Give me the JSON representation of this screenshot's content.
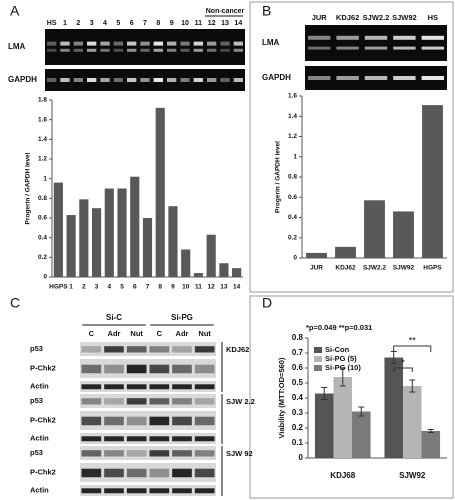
{
  "panels": [
    "A",
    "B",
    "C",
    "D"
  ],
  "gel_a": {
    "lanes": [
      "HS",
      "1",
      "2",
      "3",
      "4",
      "5",
      "6",
      "7",
      "8",
      "9",
      "10",
      "11",
      "12",
      "13",
      "14"
    ],
    "group": "Non-cancer",
    "rows": [
      "LMA",
      "GAPDH"
    ]
  },
  "gel_b": {
    "lanes": [
      "JUR",
      "KDJ62",
      "SJW2.2",
      "SJW92",
      "HS"
    ],
    "rows": [
      "LMA",
      "GAPDH"
    ]
  },
  "blot_c": {
    "header": [
      "Si-C",
      "Si-PG"
    ],
    "lanes": [
      "C",
      "Adr",
      "Nut",
      "C",
      "Adr",
      "Nut"
    ],
    "groups": [
      {
        "cell_line": "KDJ62",
        "rows": [
          "p53",
          "P-Chk2",
          "Actin"
        ]
      },
      {
        "cell_line": "SJW 2.2",
        "rows": [
          "p53",
          "P-Chk2",
          "Actin"
        ]
      },
      {
        "cell_line": "SJW 92",
        "rows": [
          "p53",
          "P-Chk2",
          "Actin"
        ]
      }
    ]
  },
  "chart_data": [
    {
      "type": "bar",
      "y_label": "Progerin / GAPDH level",
      "categories": [
        "HGPS",
        "1",
        "2",
        "3",
        "4",
        "5",
        "6",
        "7",
        "8",
        "9",
        "10",
        "11",
        "12",
        "13",
        "14"
      ],
      "values": [
        0.96,
        0.63,
        0.79,
        0.7,
        0.9,
        0.9,
        1.02,
        0.6,
        1.72,
        0.72,
        0.28,
        0.04,
        0.43,
        0.14,
        0.09
      ],
      "color": "#595959",
      "ylim": [
        0,
        1.8
      ],
      "yticks": [
        0,
        0.2,
        0.4,
        0.6,
        0.8,
        1,
        1.2,
        1.4,
        1.6,
        1.8
      ]
    },
    {
      "type": "bar",
      "y_label": "Progerin / GAPDH level",
      "categories": [
        "JUR",
        "KDJ62",
        "SJW2.2",
        "SJW92",
        "HGPS"
      ],
      "values": [
        0.05,
        0.11,
        0.57,
        0.46,
        1.51
      ],
      "color": "#595959",
      "ylim": [
        0,
        1.6
      ],
      "yticks": [
        0,
        0.2,
        0.4,
        0.6,
        0.8,
        1,
        1.2,
        1.4,
        1.6
      ]
    },
    {
      "type": "bar",
      "y_label": "Viability (MTT:OD=560)",
      "annotation": "*p=0.049 **p=0.031",
      "significance": [
        "*",
        "**"
      ],
      "categories": [
        "KDJ68",
        "SJW92"
      ],
      "series": [
        {
          "name": "Si-Con",
          "color": "#555555",
          "values": [
            0.43,
            0.67
          ],
          "errors": [
            0.04,
            0.04
          ]
        },
        {
          "name": "Si-PG (5)",
          "color": "#b5b5b5",
          "values": [
            0.54,
            0.48
          ],
          "errors": [
            0.06,
            0.04
          ]
        },
        {
          "name": "Si-PG (10)",
          "color": "#7a7a7a",
          "values": [
            0.31,
            0.18
          ],
          "errors": [
            0.03,
            0.01
          ]
        }
      ],
      "ylim": [
        0,
        0.8
      ],
      "yticks": [
        0,
        0.1,
        0.2,
        0.3,
        0.4,
        0.5,
        0.6,
        0.7,
        0.8
      ]
    }
  ]
}
